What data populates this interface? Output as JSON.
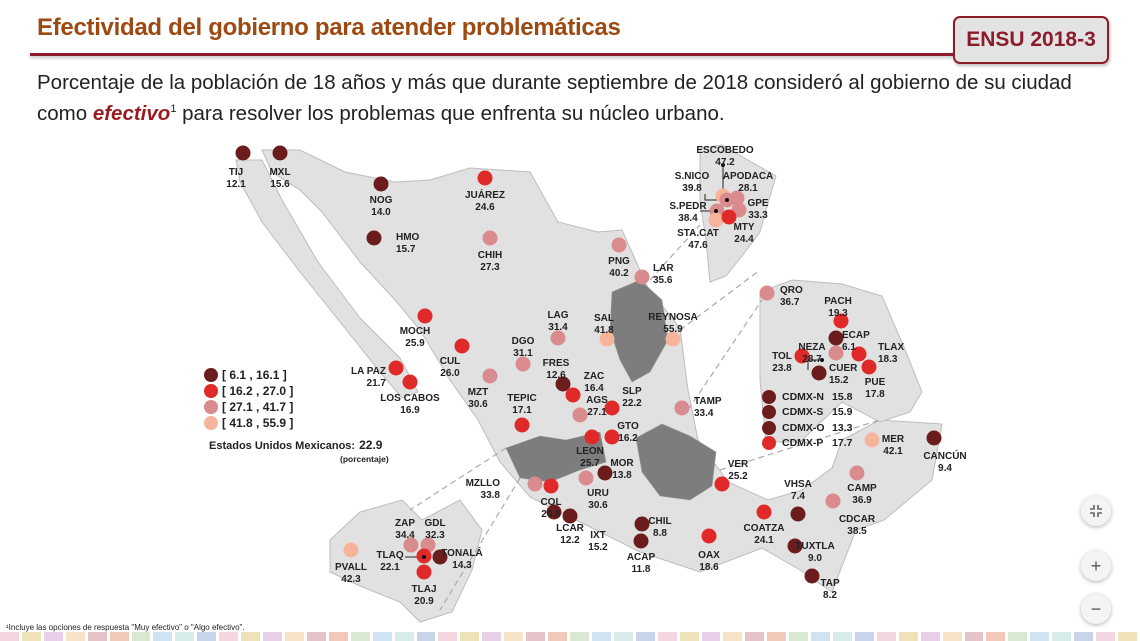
{
  "header": {
    "title": "Efectividad del gobierno para atender problemáticas",
    "badge": "ENSU 2018-3",
    "subtitle_before": "Porcentaje de la población de 18 años y más que durante septiembre de 2018 consideró al gobierno de su ciudad como ",
    "subtitle_emph": "efectivo",
    "subtitle_sup": "1",
    "subtitle_after": " para resolver los problemas que enfrenta su núcleo urbano."
  },
  "legend": [
    {
      "label": "[   6.1 , 16.1 ]",
      "min": 6.1,
      "max": 16.1,
      "color": "#6b1d1d"
    },
    {
      "label": "[ 16.2 , 27.0 ]",
      "min": 16.2,
      "max": 27.0,
      "color": "#e02a2a"
    },
    {
      "label": "[ 27.1 , 41.7 ]",
      "min": 27.1,
      "max": 41.7,
      "color": "#d98b8d"
    },
    {
      "label": "[ 41.8 , 55.9 ]",
      "min": 41.8,
      "max": 55.9,
      "color": "#f6b49a"
    }
  ],
  "national": {
    "label": "Estados Unidos Mexicanos:",
    "value": "22.9",
    "unit": "(porcentaje)"
  },
  "cities": [
    {
      "name": "TIJ",
      "value": "12.1"
    },
    {
      "name": "MXL",
      "value": "15.6"
    },
    {
      "name": "NOG",
      "value": "14.0"
    },
    {
      "name": "HMO",
      "value": "15.7"
    },
    {
      "name": "JUÁREZ",
      "value": "24.6"
    },
    {
      "name": "CHIH",
      "value": "27.3"
    },
    {
      "name": "PNG",
      "value": "40.2"
    },
    {
      "name": "LAR",
      "value": "35.6"
    },
    {
      "name": "REYNOSA",
      "value": "55.9"
    },
    {
      "name": "SAL",
      "value": "41.8"
    },
    {
      "name": "LAG",
      "value": "31.4"
    },
    {
      "name": "DGO",
      "value": "31.1"
    },
    {
      "name": "FRES",
      "value": "12.6"
    },
    {
      "name": "ZAC",
      "value": "16.4"
    },
    {
      "name": "AGS",
      "value": "27.1"
    },
    {
      "name": "SLP",
      "value": "22.2"
    },
    {
      "name": "MOCH",
      "value": "25.9"
    },
    {
      "name": "CUL",
      "value": "26.0"
    },
    {
      "name": "MZT",
      "value": "30.6"
    },
    {
      "name": "LA PAZ",
      "value": "21.7"
    },
    {
      "name": "LOS CABOS",
      "value": "16.9"
    },
    {
      "name": "TEPIC",
      "value": "17.1"
    },
    {
      "name": "TAMP",
      "value": "33.4"
    },
    {
      "name": "LEON",
      "value": "25.7"
    },
    {
      "name": "GTO",
      "value": "16.2"
    },
    {
      "name": "MOR",
      "value": "13.8"
    },
    {
      "name": "URU",
      "value": "30.6"
    },
    {
      "name": "MZLLO",
      "value": "33.8"
    },
    {
      "name": "COL",
      "value": "20.8"
    },
    {
      "name": "LCAR",
      "value": "12.2"
    },
    {
      "name": "IXT",
      "value": "15.2"
    },
    {
      "name": "CHIL",
      "value": "8.8"
    },
    {
      "name": "ACAP",
      "value": "11.8"
    },
    {
      "name": "OAX",
      "value": "18.6"
    },
    {
      "name": "VER",
      "value": "25.2"
    },
    {
      "name": "COATZA",
      "value": "24.1"
    },
    {
      "name": "VHSA",
      "value": "7.4"
    },
    {
      "name": "TUXTLA",
      "value": "9.0"
    },
    {
      "name": "TAP",
      "value": "8.2"
    },
    {
      "name": "CDCAR",
      "value": "38.5"
    },
    {
      "name": "CAMP",
      "value": "36.9"
    },
    {
      "name": "MER",
      "value": "42.1"
    },
    {
      "name": "CANCÚN",
      "value": "9.4"
    },
    {
      "name": "PVALL",
      "value": "42.3"
    },
    {
      "name": "ZAP",
      "value": "34.4"
    },
    {
      "name": "GDL",
      "value": "32.3"
    },
    {
      "name": "TLAQ",
      "value": "22.1"
    },
    {
      "name": "TONALÁ",
      "value": "14.3"
    },
    {
      "name": "TLAJ",
      "value": "20.9"
    },
    {
      "name": "ESCOBEDO",
      "value": "47.2"
    },
    {
      "name": "S.NICO",
      "value": "39.8"
    },
    {
      "name": "APODACA",
      "value": "28.1"
    },
    {
      "name": "S.PEDR",
      "value": "38.4"
    },
    {
      "name": "GPE",
      "value": "33.3"
    },
    {
      "name": "STA.CAT",
      "value": "47.6"
    },
    {
      "name": "MTY",
      "value": "24.4"
    },
    {
      "name": "QRO",
      "value": "36.7"
    },
    {
      "name": "PACH",
      "value": "19.3"
    },
    {
      "name": "ECAP",
      "value": "6.1"
    },
    {
      "name": "NEZA",
      "value": "28.7"
    },
    {
      "name": "TLAX",
      "value": "18.3"
    },
    {
      "name": "TOL",
      "value": "23.8"
    },
    {
      "name": "CUER",
      "value": "15.2"
    },
    {
      "name": "PUE",
      "value": "17.8"
    }
  ],
  "cdmx": [
    {
      "name": "CDMX-N",
      "value": "15.8"
    },
    {
      "name": "CDMX-S",
      "value": "15.9"
    },
    {
      "name": "CDMX-O",
      "value": "13.3"
    },
    {
      "name": "CDMX-P",
      "value": "17.7"
    }
  ],
  "footnote": "¹Incluye las opciones de respuesta \"Muy efectivo\" o \"Algo efectivo\".",
  "controls": {
    "fit_icon": "collapse-icon",
    "zoom_in_label": "+",
    "zoom_out_label": "−"
  },
  "colors": {
    "title": "#9c4a12",
    "accent": "#8c1c2a",
    "land": "#e1e1e1",
    "highlight_region": "#7d7d7d"
  }
}
